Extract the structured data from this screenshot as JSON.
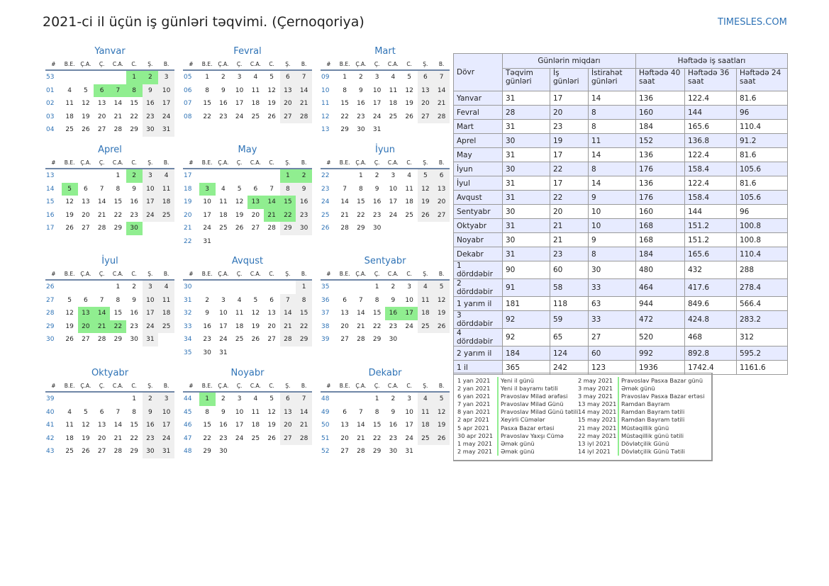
{
  "header": {
    "title": "2021-ci il üçün iş günləri təqvimi. (Çernoqoriya)",
    "brand": "TIMESLES.COM"
  },
  "weekday_headers": [
    "#",
    "B.E.",
    "Ç.A.",
    "Ç.",
    "C.A.",
    "C.",
    "Ş.",
    "B."
  ],
  "months": [
    {
      "name": "Yanvar",
      "weeks": [
        {
          "wk": "53",
          "days": [
            "",
            "",
            "",
            "",
            "1",
            "2",
            "3"
          ]
        },
        {
          "wk": "01",
          "days": [
            "4",
            "5",
            "6",
            "7",
            "8",
            "9",
            "10"
          ]
        },
        {
          "wk": "02",
          "days": [
            "11",
            "12",
            "13",
            "14",
            "15",
            "16",
            "17"
          ]
        },
        {
          "wk": "03",
          "days": [
            "18",
            "19",
            "20",
            "21",
            "22",
            "23",
            "24"
          ]
        },
        {
          "wk": "04",
          "days": [
            "25",
            "26",
            "27",
            "28",
            "29",
            "30",
            "31"
          ]
        }
      ],
      "holidays": [
        "1",
        "2",
        "6",
        "7",
        "8"
      ]
    },
    {
      "name": "Fevral",
      "weeks": [
        {
          "wk": "05",
          "days": [
            "1",
            "2",
            "3",
            "4",
            "5",
            "6",
            "7"
          ]
        },
        {
          "wk": "06",
          "days": [
            "8",
            "9",
            "10",
            "11",
            "12",
            "13",
            "14"
          ]
        },
        {
          "wk": "07",
          "days": [
            "15",
            "16",
            "17",
            "18",
            "19",
            "20",
            "21"
          ]
        },
        {
          "wk": "08",
          "days": [
            "22",
            "23",
            "24",
            "25",
            "26",
            "27",
            "28"
          ]
        }
      ],
      "holidays": []
    },
    {
      "name": "Mart",
      "weeks": [
        {
          "wk": "09",
          "days": [
            "1",
            "2",
            "3",
            "4",
            "5",
            "6",
            "7"
          ]
        },
        {
          "wk": "10",
          "days": [
            "8",
            "9",
            "10",
            "11",
            "12",
            "13",
            "14"
          ]
        },
        {
          "wk": "11",
          "days": [
            "15",
            "16",
            "17",
            "18",
            "19",
            "20",
            "21"
          ]
        },
        {
          "wk": "12",
          "days": [
            "22",
            "23",
            "24",
            "25",
            "26",
            "27",
            "28"
          ]
        },
        {
          "wk": "13",
          "days": [
            "29",
            "30",
            "31",
            "",
            "",
            "",
            ""
          ]
        }
      ],
      "holidays": []
    },
    {
      "name": "Aprel",
      "weeks": [
        {
          "wk": "13",
          "days": [
            "",
            "",
            "",
            "1",
            "2",
            "3",
            "4"
          ]
        },
        {
          "wk": "14",
          "days": [
            "5",
            "6",
            "7",
            "8",
            "9",
            "10",
            "11"
          ]
        },
        {
          "wk": "15",
          "days": [
            "12",
            "13",
            "14",
            "15",
            "16",
            "17",
            "18"
          ]
        },
        {
          "wk": "16",
          "days": [
            "19",
            "20",
            "21",
            "22",
            "23",
            "24",
            "25"
          ]
        },
        {
          "wk": "17",
          "days": [
            "26",
            "27",
            "28",
            "29",
            "30",
            "",
            ""
          ]
        }
      ],
      "holidays": [
        "2",
        "5",
        "30"
      ]
    },
    {
      "name": "May",
      "weeks": [
        {
          "wk": "17",
          "days": [
            "",
            "",
            "",
            "",
            "",
            "1",
            "2"
          ]
        },
        {
          "wk": "18",
          "days": [
            "3",
            "4",
            "5",
            "6",
            "7",
            "8",
            "9"
          ]
        },
        {
          "wk": "19",
          "days": [
            "10",
            "11",
            "12",
            "13",
            "14",
            "15",
            "16"
          ]
        },
        {
          "wk": "20",
          "days": [
            "17",
            "18",
            "19",
            "20",
            "21",
            "22",
            "23"
          ]
        },
        {
          "wk": "21",
          "days": [
            "24",
            "25",
            "26",
            "27",
            "28",
            "29",
            "30"
          ]
        },
        {
          "wk": "22",
          "days": [
            "31",
            "",
            "",
            "",
            "",
            "",
            ""
          ]
        }
      ],
      "holidays": [
        "1",
        "2",
        "3",
        "13",
        "14",
        "15",
        "21",
        "22"
      ]
    },
    {
      "name": "İyun",
      "weeks": [
        {
          "wk": "22",
          "days": [
            "",
            "1",
            "2",
            "3",
            "4",
            "5",
            "6"
          ]
        },
        {
          "wk": "23",
          "days": [
            "7",
            "8",
            "9",
            "10",
            "11",
            "12",
            "13"
          ]
        },
        {
          "wk": "24",
          "days": [
            "14",
            "15",
            "16",
            "17",
            "18",
            "19",
            "20"
          ]
        },
        {
          "wk": "25",
          "days": [
            "21",
            "22",
            "23",
            "24",
            "25",
            "26",
            "27"
          ]
        },
        {
          "wk": "26",
          "days": [
            "28",
            "29",
            "30",
            "",
            "",
            "",
            ""
          ]
        }
      ],
      "holidays": []
    },
    {
      "name": "İyul",
      "weeks": [
        {
          "wk": "26",
          "days": [
            "",
            "",
            "",
            "1",
            "2",
            "3",
            "4"
          ]
        },
        {
          "wk": "27",
          "days": [
            "5",
            "6",
            "7",
            "8",
            "9",
            "10",
            "11"
          ]
        },
        {
          "wk": "28",
          "days": [
            "12",
            "13",
            "14",
            "15",
            "16",
            "17",
            "18"
          ]
        },
        {
          "wk": "29",
          "days": [
            "19",
            "20",
            "21",
            "22",
            "23",
            "24",
            "25"
          ]
        },
        {
          "wk": "30",
          "days": [
            "26",
            "27",
            "28",
            "29",
            "30",
            "31",
            ""
          ]
        }
      ],
      "holidays": [
        "13",
        "14",
        "20",
        "21",
        "22"
      ]
    },
    {
      "name": "Avqust",
      "weeks": [
        {
          "wk": "30",
          "days": [
            "",
            "",
            "",
            "",
            "",
            "",
            "1"
          ]
        },
        {
          "wk": "31",
          "days": [
            "2",
            "3",
            "4",
            "5",
            "6",
            "7",
            "8"
          ]
        },
        {
          "wk": "32",
          "days": [
            "9",
            "10",
            "11",
            "12",
            "13",
            "14",
            "15"
          ]
        },
        {
          "wk": "33",
          "days": [
            "16",
            "17",
            "18",
            "19",
            "20",
            "21",
            "22"
          ]
        },
        {
          "wk": "34",
          "days": [
            "23",
            "24",
            "25",
            "26",
            "27",
            "28",
            "29"
          ]
        },
        {
          "wk": "35",
          "days": [
            "30",
            "31",
            "",
            "",
            "",
            "",
            ""
          ]
        }
      ],
      "holidays": []
    },
    {
      "name": "Sentyabr",
      "weeks": [
        {
          "wk": "35",
          "days": [
            "",
            "",
            "1",
            "2",
            "3",
            "4",
            "5"
          ]
        },
        {
          "wk": "36",
          "days": [
            "6",
            "7",
            "8",
            "9",
            "10",
            "11",
            "12"
          ]
        },
        {
          "wk": "37",
          "days": [
            "13",
            "14",
            "15",
            "16",
            "17",
            "18",
            "19"
          ]
        },
        {
          "wk": "38",
          "days": [
            "20",
            "21",
            "22",
            "23",
            "24",
            "25",
            "26"
          ]
        },
        {
          "wk": "39",
          "days": [
            "27",
            "28",
            "29",
            "30",
            "",
            "",
            ""
          ]
        }
      ],
      "holidays": [
        "16",
        "17"
      ]
    },
    {
      "name": "Oktyabr",
      "weeks": [
        {
          "wk": "39",
          "days": [
            "",
            "",
            "",
            "",
            "1",
            "2",
            "3"
          ]
        },
        {
          "wk": "40",
          "days": [
            "4",
            "5",
            "6",
            "7",
            "8",
            "9",
            "10"
          ]
        },
        {
          "wk": "41",
          "days": [
            "11",
            "12",
            "13",
            "14",
            "15",
            "16",
            "17"
          ]
        },
        {
          "wk": "42",
          "days": [
            "18",
            "19",
            "20",
            "21",
            "22",
            "23",
            "24"
          ]
        },
        {
          "wk": "43",
          "days": [
            "25",
            "26",
            "27",
            "28",
            "29",
            "30",
            "31"
          ]
        }
      ],
      "holidays": []
    },
    {
      "name": "Noyabr",
      "weeks": [
        {
          "wk": "44",
          "days": [
            "1",
            "2",
            "3",
            "4",
            "5",
            "6",
            "7"
          ]
        },
        {
          "wk": "45",
          "days": [
            "8",
            "9",
            "10",
            "11",
            "12",
            "13",
            "14"
          ]
        },
        {
          "wk": "46",
          "days": [
            "15",
            "16",
            "17",
            "18",
            "19",
            "20",
            "21"
          ]
        },
        {
          "wk": "47",
          "days": [
            "22",
            "23",
            "24",
            "25",
            "26",
            "27",
            "28"
          ]
        },
        {
          "wk": "48",
          "days": [
            "29",
            "30",
            "",
            "",
            "",
            "",
            ""
          ]
        }
      ],
      "holidays": [
        "1"
      ]
    },
    {
      "name": "Dekabr",
      "weeks": [
        {
          "wk": "48",
          "days": [
            "",
            "",
            "1",
            "2",
            "3",
            "4",
            "5"
          ]
        },
        {
          "wk": "49",
          "days": [
            "6",
            "7",
            "8",
            "9",
            "10",
            "11",
            "12"
          ]
        },
        {
          "wk": "50",
          "days": [
            "13",
            "14",
            "15",
            "16",
            "17",
            "18",
            "19"
          ]
        },
        {
          "wk": "51",
          "days": [
            "20",
            "21",
            "22",
            "23",
            "24",
            "25",
            "26"
          ]
        },
        {
          "wk": "52",
          "days": [
            "27",
            "28",
            "29",
            "30",
            "31",
            "",
            ""
          ]
        }
      ],
      "holidays": []
    }
  ],
  "stats": {
    "period_header": "Dövr",
    "group1": "Günlərin miqdarı",
    "group2": "Həftədə iş saatları",
    "subheaders": [
      "Təqvim günləri",
      "İş günləri",
      "İstirahət günləri",
      "Həftədə 40 saat",
      "Həftədə 36 saat",
      "Həftədə 24 saat"
    ],
    "rows": [
      [
        "Yanvar",
        "31",
        "17",
        "14",
        "136",
        "122.4",
        "81.6"
      ],
      [
        "Fevral",
        "28",
        "20",
        "8",
        "160",
        "144",
        "96"
      ],
      [
        "Mart",
        "31",
        "23",
        "8",
        "184",
        "165.6",
        "110.4"
      ],
      [
        "Aprel",
        "30",
        "19",
        "11",
        "152",
        "136.8",
        "91.2"
      ],
      [
        "May",
        "31",
        "17",
        "14",
        "136",
        "122.4",
        "81.6"
      ],
      [
        "İyun",
        "30",
        "22",
        "8",
        "176",
        "158.4",
        "105.6"
      ],
      [
        "İyul",
        "31",
        "17",
        "14",
        "136",
        "122.4",
        "81.6"
      ],
      [
        "Avqust",
        "31",
        "22",
        "9",
        "176",
        "158.4",
        "105.6"
      ],
      [
        "Sentyabr",
        "30",
        "20",
        "10",
        "160",
        "144",
        "96"
      ],
      [
        "Oktyabr",
        "31",
        "21",
        "10",
        "168",
        "151.2",
        "100.8"
      ],
      [
        "Noyabr",
        "30",
        "21",
        "9",
        "168",
        "151.2",
        "100.8"
      ],
      [
        "Dekabr",
        "31",
        "23",
        "8",
        "184",
        "165.6",
        "110.4"
      ],
      [
        "1 dörddəbir",
        "90",
        "60",
        "30",
        "480",
        "432",
        "288"
      ],
      [
        "2 dörddəbir",
        "91",
        "58",
        "33",
        "464",
        "417.6",
        "278.4"
      ],
      [
        "1 yarım il",
        "181",
        "118",
        "63",
        "944",
        "849.6",
        "566.4"
      ],
      [
        "3 dörddəbir",
        "92",
        "59",
        "33",
        "472",
        "424.8",
        "283.2"
      ],
      [
        "4 dörddəbir",
        "92",
        "65",
        "27",
        "520",
        "468",
        "312"
      ],
      [
        "2 yarım il",
        "184",
        "124",
        "60",
        "992",
        "892.8",
        "595.2"
      ],
      [
        "1 il",
        "365",
        "242",
        "123",
        "1936",
        "1742.4",
        "1161.6"
      ]
    ]
  },
  "holiday_list": [
    [
      {
        "date": "1 yan 2021",
        "name": "Yeni il günü"
      },
      {
        "date": "2 yan 2021",
        "name": "Yeni il bayramı tətili"
      },
      {
        "date": "6 yan 2021",
        "name": "Pravoslav Milad ərəfəsi"
      },
      {
        "date": "7 yan 2021",
        "name": "Pravoslav Milad Günü"
      },
      {
        "date": "8 yan 2021",
        "name": "Pravoslav Milad Günü tətili"
      },
      {
        "date": "2 apr 2021",
        "name": "Xeyirli Cümələr"
      },
      {
        "date": "5 apr 2021",
        "name": "Pasxa Bazar ertəsi"
      },
      {
        "date": "30 apr 2021",
        "name": "Pravoslav Yaxşı Cümə"
      },
      {
        "date": "1 may 2021",
        "name": "Əmək günü"
      },
      {
        "date": "2 may 2021",
        "name": "Əmək günü"
      }
    ],
    [
      {
        "date": "2 may 2021",
        "name": "Pravoslav Pasxa Bazar günü"
      },
      {
        "date": "3 may 2021",
        "name": "Əmək günü"
      },
      {
        "date": "3 may 2021",
        "name": "Pravoslav Pasxa Bazar ertəsi"
      },
      {
        "date": "13 may 2021",
        "name": "Ramdan Bayram"
      },
      {
        "date": "14 may 2021",
        "name": "Ramdan Bayram tətili"
      },
      {
        "date": "15 may 2021",
        "name": "Ramdan Bayram tətili"
      },
      {
        "date": "21 may 2021",
        "name": "Müstəqillik günü"
      },
      {
        "date": "22 may 2021",
        "name": "Müstəqillik günü tətili"
      },
      {
        "date": "13 iyl 2021",
        "name": "Dövlətçilik Günü"
      },
      {
        "date": "14 iyl 2021",
        "name": "Dövlətçilik Günü Tətili"
      }
    ]
  ]
}
